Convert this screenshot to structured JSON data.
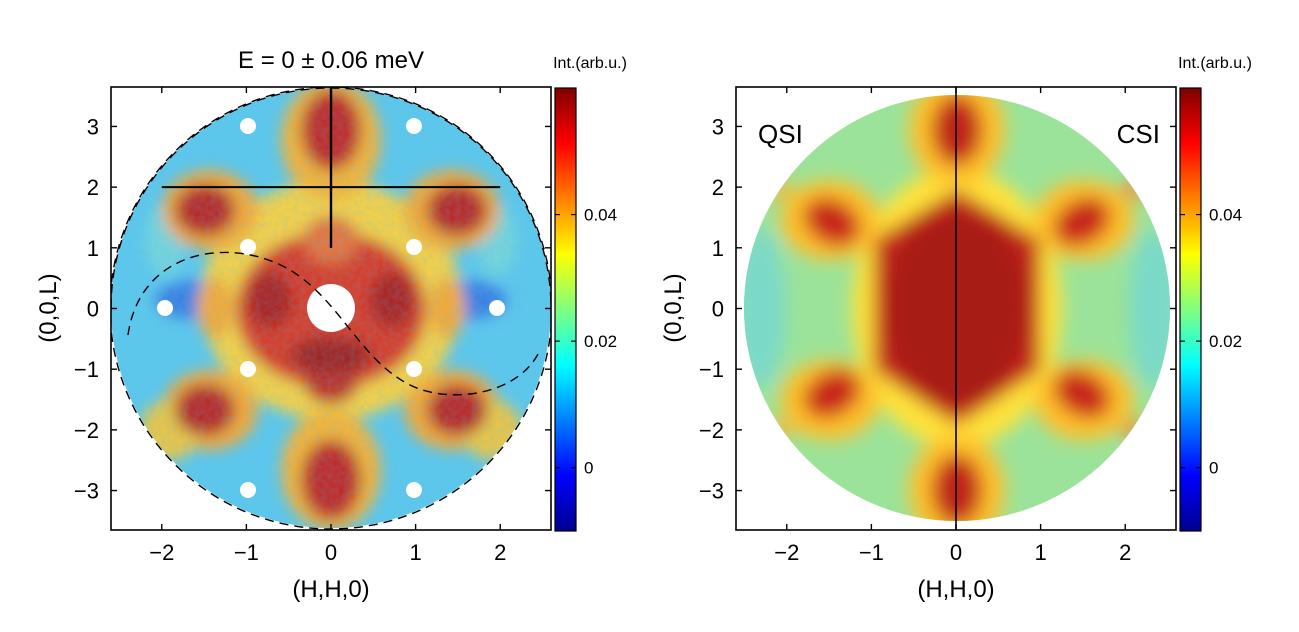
{
  "chart_data": [
    {
      "type": "heatmap",
      "title": "E = 0 ± 0.06 meV",
      "xlabel": "(H,H,0)",
      "ylabel": "(0,0,L)",
      "xlim": [
        -2.6,
        2.6
      ],
      "ylim": [
        -3.65,
        3.65
      ],
      "xticks": [
        -2,
        -1,
        0,
        1,
        2
      ],
      "yticks": [
        -3,
        -2,
        -1,
        0,
        1,
        2,
        3
      ],
      "xtick_labels": [
        "−2",
        "−1",
        "0",
        "1",
        "2"
      ],
      "ytick_labels": [
        "−3",
        "−2",
        "−1",
        "0",
        "1",
        "2",
        "3"
      ],
      "colorbar": {
        "label": "Int.(arb.u.)",
        "range": [
          -0.01,
          0.06
        ],
        "ticks": [
          0,
          0.02,
          0.04
        ],
        "tick_labels": [
          "0",
          "0.02",
          "0.04"
        ],
        "colormap": "jet"
      },
      "data_region": "circle",
      "overlays": {
        "solid_lines": [
          {
            "x": [
              -2,
              2
            ],
            "y": [
              2,
              2
            ]
          },
          {
            "x": [
              0,
              0
            ],
            "y": [
              1,
              3.65
            ]
          }
        ],
        "dashed_curves": [
          "outer boundary circle",
          "inner S-shaped curve"
        ],
        "masked_spots": [
          [
            0,
            0
          ],
          [
            -1,
            1
          ],
          [
            1,
            1
          ],
          [
            -1,
            -1
          ],
          [
            1,
            -1
          ],
          [
            -2,
            0
          ],
          [
            2,
            0
          ],
          [
            -1,
            3
          ],
          [
            1,
            3
          ],
          [
            -1,
            -3
          ],
          [
            1,
            -3
          ]
        ]
      },
      "annotations": []
    },
    {
      "type": "heatmap",
      "title": "",
      "xlabel": "(H,H,0)",
      "ylabel": "(0,0,L)",
      "xlim": [
        -2.6,
        2.6
      ],
      "ylim": [
        -3.65,
        3.65
      ],
      "xticks": [
        -2,
        -1,
        0,
        1,
        2
      ],
      "yticks": [
        -3,
        -2,
        -1,
        0,
        1,
        2,
        3
      ],
      "xtick_labels": [
        "−2",
        "−1",
        "0",
        "1",
        "2"
      ],
      "ytick_labels": [
        "−3",
        "−2",
        "−1",
        "0",
        "1",
        "2",
        "3"
      ],
      "colorbar": {
        "label": "Int.(arb.u.)",
        "range": [
          -0.01,
          0.06
        ],
        "ticks": [
          0,
          0.02,
          0.04
        ],
        "tick_labels": [
          "0",
          "0.02",
          "0.04"
        ],
        "colormap": "jet"
      },
      "data_region": "circle",
      "overlays": {
        "solid_lines": [
          {
            "x": [
              0,
              0
            ],
            "y": [
              -3.65,
              3.65
            ]
          }
        ]
      },
      "annotations": [
        "QSI",
        "CSI"
      ]
    }
  ]
}
